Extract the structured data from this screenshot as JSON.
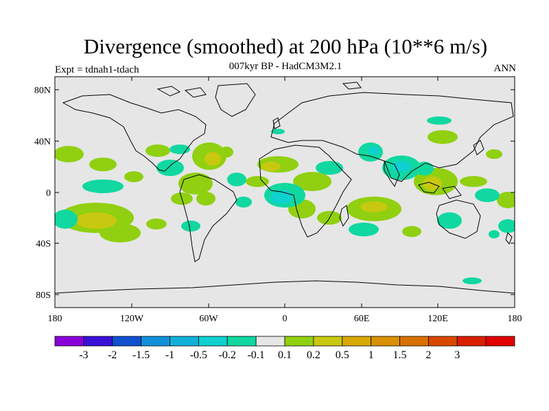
{
  "title": "Divergence (smoothed) at 200 hPa (10**6 m/s)",
  "subtitle": "007kyr BP - HadCM3M2.1",
  "left_label": "Expt = tdnah1-tdach",
  "right_label": "ANN",
  "map": {
    "background_color": "#e6e6e6",
    "lat_ticks": [
      "80N",
      "40N",
      "0",
      "40S",
      "80S"
    ],
    "lon_ticks": [
      "180",
      "120W",
      "60W",
      "0",
      "60E",
      "120E",
      "180"
    ]
  },
  "colorbar": {
    "colors": [
      "#8a00d8",
      "#3a10d8",
      "#1050d0",
      "#1090d8",
      "#10b0d8",
      "#10d0d0",
      "#10d8a0",
      "#e6e6e6",
      "#90d010",
      "#c8c810",
      "#d8a800",
      "#d89000",
      "#d87000",
      "#d84800",
      "#d82000",
      "#e00000"
    ],
    "labels": [
      "-3",
      "-2",
      "-1.5",
      "-1",
      "-0.5",
      "-0.2",
      "-0.1",
      "0.1",
      "0.2",
      "0.5",
      "1",
      "1.5",
      "2",
      "3"
    ]
  }
}
